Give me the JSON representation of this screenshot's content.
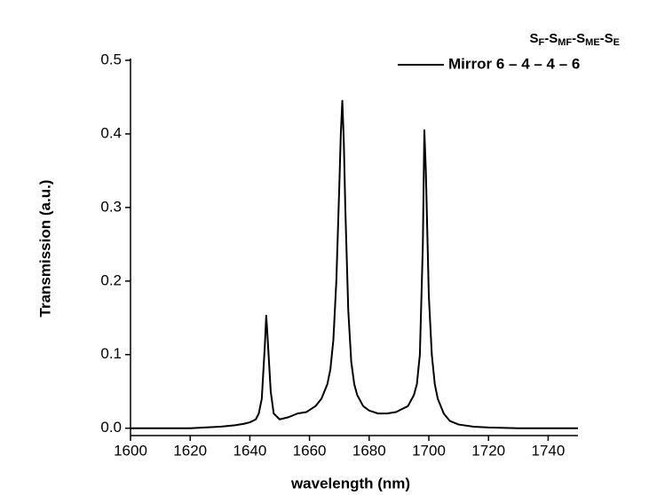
{
  "chart_data": {
    "type": "line",
    "xlabel": "wavelength (nm)",
    "ylabel": "Transmission (a.u.)",
    "legend_title": [
      "S",
      "F",
      "-S",
      "MF",
      "-S",
      "ME",
      "-S",
      "E"
    ],
    "legend": "upper right",
    "x": [
      1600,
      1610,
      1620,
      1630,
      1635,
      1638,
      1640,
      1642,
      1643,
      1644,
      1645,
      1645.5,
      1646,
      1647,
      1648,
      1650,
      1653,
      1656,
      1659,
      1662,
      1664,
      1666,
      1667,
      1668,
      1669,
      1670,
      1670.5,
      1671,
      1671.5,
      1672,
      1673,
      1674,
      1675,
      1676,
      1678,
      1680,
      1683,
      1686,
      1689,
      1691,
      1693,
      1695,
      1696,
      1697,
      1698,
      1698.5,
      1699,
      1700,
      1701,
      1702,
      1703,
      1705,
      1707,
      1710,
      1715,
      1720,
      1730,
      1740,
      1750
    ],
    "series": [
      {
        "name": "Mirror 6 – 4 – 4 – 6",
        "color": "#000000",
        "values": [
          0,
          0,
          0,
          0.002,
          0.004,
          0.006,
          0.008,
          0.012,
          0.02,
          0.04,
          0.11,
          0.153,
          0.12,
          0.05,
          0.02,
          0.012,
          0.015,
          0.02,
          0.022,
          0.03,
          0.04,
          0.06,
          0.08,
          0.12,
          0.2,
          0.33,
          0.4,
          0.445,
          0.39,
          0.3,
          0.16,
          0.09,
          0.06,
          0.045,
          0.03,
          0.024,
          0.02,
          0.02,
          0.022,
          0.026,
          0.03,
          0.045,
          0.06,
          0.1,
          0.25,
          0.405,
          0.35,
          0.18,
          0.1,
          0.06,
          0.04,
          0.02,
          0.01,
          0.005,
          0.002,
          0.001,
          0,
          0,
          0
        ]
      }
    ],
    "xlim": [
      1600,
      1750
    ],
    "xticks": [
      1600,
      1620,
      1640,
      1660,
      1680,
      1700,
      1720,
      1740
    ],
    "ylim": [
      -0.01,
      0.5
    ],
    "yticks": [
      {
        "value": 0,
        "label": "0.0"
      },
      0.1,
      0.2,
      0.3,
      0.4,
      0.5
    ]
  }
}
